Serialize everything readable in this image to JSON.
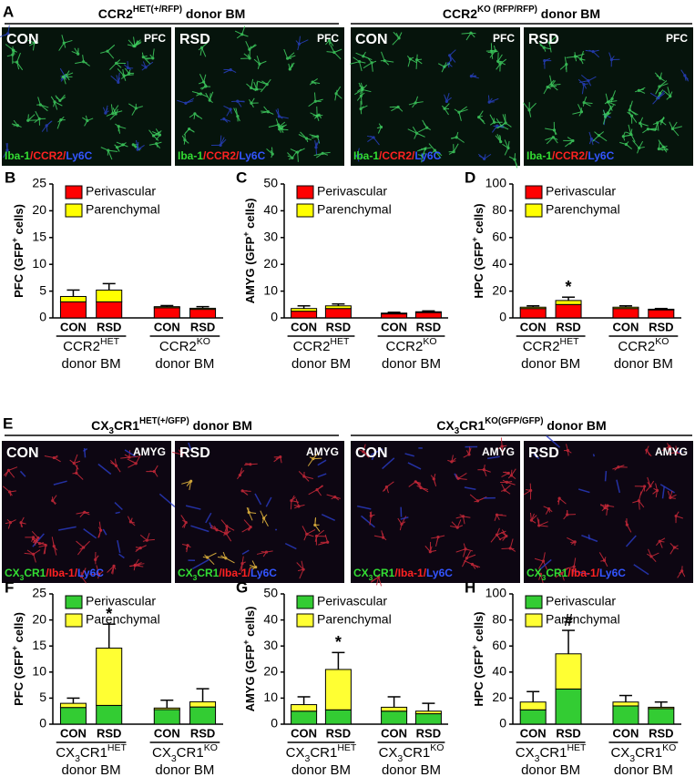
{
  "figure": {
    "image_panels": [
      {
        "letter": "A",
        "theme": "green",
        "stain": [
          {
            "text": "Iba-1",
            "color": "#33dd33"
          },
          {
            "text": "/CCR2/",
            "color": "#ff2222"
          },
          {
            "text": "Ly6C",
            "color": "#3355ff"
          }
        ],
        "groups": [
          {
            "title": [
              {
                "text": "CCR2"
              },
              {
                "text": "HET(+/RFP)",
                "style": "sup"
              },
              {
                "text": " donor BM"
              }
            ],
            "images": [
              {
                "condition": "CON",
                "region": "PFC"
              },
              {
                "condition": "RSD",
                "region": "PFC"
              }
            ]
          },
          {
            "title": [
              {
                "text": "CCR2"
              },
              {
                "text": "KO (RFP/RFP)",
                "style": "sup"
              },
              {
                "text": " donor BM"
              }
            ],
            "images": [
              {
                "condition": "CON",
                "region": "PFC"
              },
              {
                "condition": "RSD",
                "region": "PFC"
              }
            ]
          }
        ]
      },
      {
        "letter": "E",
        "theme": "red",
        "stain": [
          {
            "text": "CX",
            "color": "#33dd33"
          },
          {
            "text": "3",
            "color": "#33dd33",
            "style": "sub"
          },
          {
            "text": "CR1",
            "color": "#33dd33"
          },
          {
            "text": "/Iba-1/",
            "color": "#ff2222"
          },
          {
            "text": "Ly6C",
            "color": "#3355ff"
          }
        ],
        "groups": [
          {
            "title": [
              {
                "text": "CX"
              },
              {
                "text": "3",
                "style": "sub"
              },
              {
                "text": "CR1"
              },
              {
                "text": "HET(+/GFP)",
                "style": "sup"
              },
              {
                "text": " donor BM"
              }
            ],
            "images": [
              {
                "condition": "CON",
                "region": "AMYG"
              },
              {
                "condition": "RSD",
                "region": "AMYG"
              }
            ]
          },
          {
            "title": [
              {
                "text": "CX"
              },
              {
                "text": "3",
                "style": "sub"
              },
              {
                "text": "CR1"
              },
              {
                "text": "KO(GFP/GFP)",
                "style": "sup"
              },
              {
                "text": " donor BM"
              }
            ],
            "images": [
              {
                "condition": "CON",
                "region": "AMYG"
              },
              {
                "condition": "RSD",
                "region": "AMYG"
              }
            ]
          }
        ]
      }
    ]
  },
  "chart_data": [
    {
      "type": "bar",
      "stacked": true,
      "letter": "B",
      "legend": "upper left",
      "ylabel": [
        {
          "text": "PFC (GFP"
        },
        {
          "text": "+",
          "style": "sup"
        },
        {
          "text": " cells)"
        }
      ],
      "ylim": [
        0,
        25
      ],
      "yticks": [
        0,
        5,
        10,
        15,
        20,
        25
      ],
      "categories": [
        "CON",
        "RSD",
        "CON",
        "RSD"
      ],
      "groups": [
        {
          "label": [
            {
              "text": "CCR2"
            },
            {
              "text": "HET",
              "style": "sup"
            }
          ],
          "sublabel": "donor BM"
        },
        {
          "label": [
            {
              "text": "CCR2"
            },
            {
              "text": "KO",
              "style": "sup"
            }
          ],
          "sublabel": "donor BM"
        }
      ],
      "series": [
        {
          "name": "Perivascular",
          "color": "#ff0000",
          "values": [
            3,
            3,
            1.9,
            1.6
          ]
        },
        {
          "name": "Parenchymal",
          "color": "#ffff00",
          "values": [
            1,
            2.2,
            0.2,
            0.2
          ]
        }
      ],
      "errors": [
        1.2,
        1.2,
        0.2,
        0.3
      ],
      "annotations": []
    },
    {
      "type": "bar",
      "stacked": true,
      "letter": "C",
      "legend": "upper left",
      "ylabel": [
        {
          "text": "AMYG (GFP"
        },
        {
          "text": "+",
          "style": "sup"
        },
        {
          "text": " cells)"
        }
      ],
      "ylim": [
        0,
        50
      ],
      "yticks": [
        0,
        10,
        20,
        30,
        40,
        50
      ],
      "categories": [
        "CON",
        "RSD",
        "CON",
        "RSD"
      ],
      "groups": [
        {
          "label": [
            {
              "text": "CCR2"
            },
            {
              "text": "HET",
              "style": "sup"
            }
          ],
          "sublabel": "donor BM"
        },
        {
          "label": [
            {
              "text": "CCR2"
            },
            {
              "text": "KO",
              "style": "sup"
            }
          ],
          "sublabel": "donor BM"
        }
      ],
      "series": [
        {
          "name": "Perivascular",
          "color": "#ff0000",
          "values": [
            2.5,
            3.5,
            1.5,
            2
          ]
        },
        {
          "name": "Parenchymal",
          "color": "#ffff00",
          "values": [
            1,
            1,
            0.3,
            0.3
          ]
        }
      ],
      "errors": [
        1,
        0.7,
        0.3,
        0.3
      ],
      "annotations": []
    },
    {
      "type": "bar",
      "stacked": true,
      "letter": "D",
      "legend": "upper left",
      "ylabel": [
        {
          "text": "HPC (GFP"
        },
        {
          "text": "+",
          "style": "sup"
        },
        {
          "text": " cells)"
        }
      ],
      "ylim": [
        0,
        100
      ],
      "yticks": [
        0,
        20,
        40,
        60,
        80,
        100
      ],
      "categories": [
        "CON",
        "RSD",
        "CON",
        "RSD"
      ],
      "groups": [
        {
          "label": [
            {
              "text": "CCR2"
            },
            {
              "text": "HET",
              "style": "sup"
            }
          ],
          "sublabel": "donor BM"
        },
        {
          "label": [
            {
              "text": "CCR2"
            },
            {
              "text": "KO",
              "style": "sup"
            }
          ],
          "sublabel": "donor BM"
        }
      ],
      "series": [
        {
          "name": "Perivascular",
          "color": "#ff0000",
          "values": [
            7,
            10,
            7,
            6
          ]
        },
        {
          "name": "Parenchymal",
          "color": "#ffff00",
          "values": [
            1,
            3,
            1,
            0.5
          ]
        }
      ],
      "errors": [
        1,
        2.5,
        1,
        0.5
      ],
      "annotations": [
        {
          "text": "*",
          "category": 1
        }
      ]
    },
    {
      "type": "bar",
      "stacked": true,
      "letter": "F",
      "legend": "upper left",
      "ylabel": [
        {
          "text": "PFC (GFP"
        },
        {
          "text": "+",
          "style": "sup"
        },
        {
          "text": " cells)"
        }
      ],
      "ylim": [
        0,
        25
      ],
      "yticks": [
        0,
        5,
        10,
        15,
        20,
        25
      ],
      "categories": [
        "CON",
        "RSD",
        "CON",
        "RSD"
      ],
      "groups": [
        {
          "label": [
            {
              "text": "CX"
            },
            {
              "text": "3",
              "style": "sub"
            },
            {
              "text": "CR1"
            },
            {
              "text": "HET",
              "style": "sup"
            }
          ],
          "sublabel": "donor BM"
        },
        {
          "label": [
            {
              "text": "CX"
            },
            {
              "text": "3",
              "style": "sub"
            },
            {
              "text": "CR1"
            },
            {
              "text": "KO",
              "style": "sup"
            }
          ],
          "sublabel": "donor BM"
        }
      ],
      "series": [
        {
          "name": "Perivascular",
          "color": "#33cc33",
          "values": [
            3.2,
            3.6,
            2.8,
            3.3
          ]
        },
        {
          "name": "Parenchymal",
          "color": "#ffff33",
          "values": [
            0.8,
            11,
            0.3,
            1
          ]
        }
      ],
      "errors": [
        1,
        4.6,
        1.5,
        2.5
      ],
      "annotations": [
        {
          "text": "*",
          "category": 1
        }
      ]
    },
    {
      "type": "bar",
      "stacked": true,
      "letter": "G",
      "legend": "upper left",
      "ylabel": [
        {
          "text": "AMYG (GFP"
        },
        {
          "text": "+",
          "style": "sup"
        },
        {
          "text": " cells)"
        }
      ],
      "ylim": [
        0,
        50
      ],
      "yticks": [
        0,
        10,
        20,
        30,
        40,
        50
      ],
      "categories": [
        "CON",
        "RSD",
        "CON",
        "RSD"
      ],
      "groups": [
        {
          "label": [
            {
              "text": "CX"
            },
            {
              "text": "3",
              "style": "sub"
            },
            {
              "text": "CR1"
            },
            {
              "text": "HET",
              "style": "sup"
            }
          ],
          "sublabel": "donor BM"
        },
        {
          "label": [
            {
              "text": "CX"
            },
            {
              "text": "3",
              "style": "sub"
            },
            {
              "text": "CR1"
            },
            {
              "text": "KO",
              "style": "sup"
            }
          ],
          "sublabel": "donor BM"
        }
      ],
      "series": [
        {
          "name": "Perivascular",
          "color": "#33cc33",
          "values": [
            5,
            5.5,
            5,
            4
          ]
        },
        {
          "name": "Parenchymal",
          "color": "#ffff33",
          "values": [
            2.5,
            15.5,
            1.5,
            1
          ]
        }
      ],
      "errors": [
        3,
        6.5,
        4,
        3
      ],
      "annotations": [
        {
          "text": "*",
          "category": 1
        }
      ]
    },
    {
      "type": "bar",
      "stacked": true,
      "letter": "H",
      "legend": "upper left",
      "ylabel": [
        {
          "text": "HPC (GFP"
        },
        {
          "text": "+",
          "style": "sup"
        },
        {
          "text": " cells)"
        }
      ],
      "ylim": [
        0,
        100
      ],
      "yticks": [
        0,
        20,
        40,
        60,
        80,
        100
      ],
      "categories": [
        "CON",
        "RSD",
        "CON",
        "RSD"
      ],
      "groups": [
        {
          "label": [
            {
              "text": "CX"
            },
            {
              "text": "3",
              "style": "sub"
            },
            {
              "text": "CR1"
            },
            {
              "text": "HET",
              "style": "sup"
            }
          ],
          "sublabel": "donor BM"
        },
        {
          "label": [
            {
              "text": "CX"
            },
            {
              "text": "3",
              "style": "sub"
            },
            {
              "text": "CR1"
            },
            {
              "text": "KO",
              "style": "sup"
            }
          ],
          "sublabel": "donor BM"
        }
      ],
      "series": [
        {
          "name": "Perivascular",
          "color": "#33cc33",
          "values": [
            11,
            27,
            14,
            12
          ]
        },
        {
          "name": "Parenchymal",
          "color": "#ffff33",
          "values": [
            6,
            27,
            3,
            1
          ]
        }
      ],
      "errors": [
        8,
        18,
        5,
        4
      ],
      "annotations": [
        {
          "text": "#",
          "category": 1
        }
      ]
    }
  ]
}
